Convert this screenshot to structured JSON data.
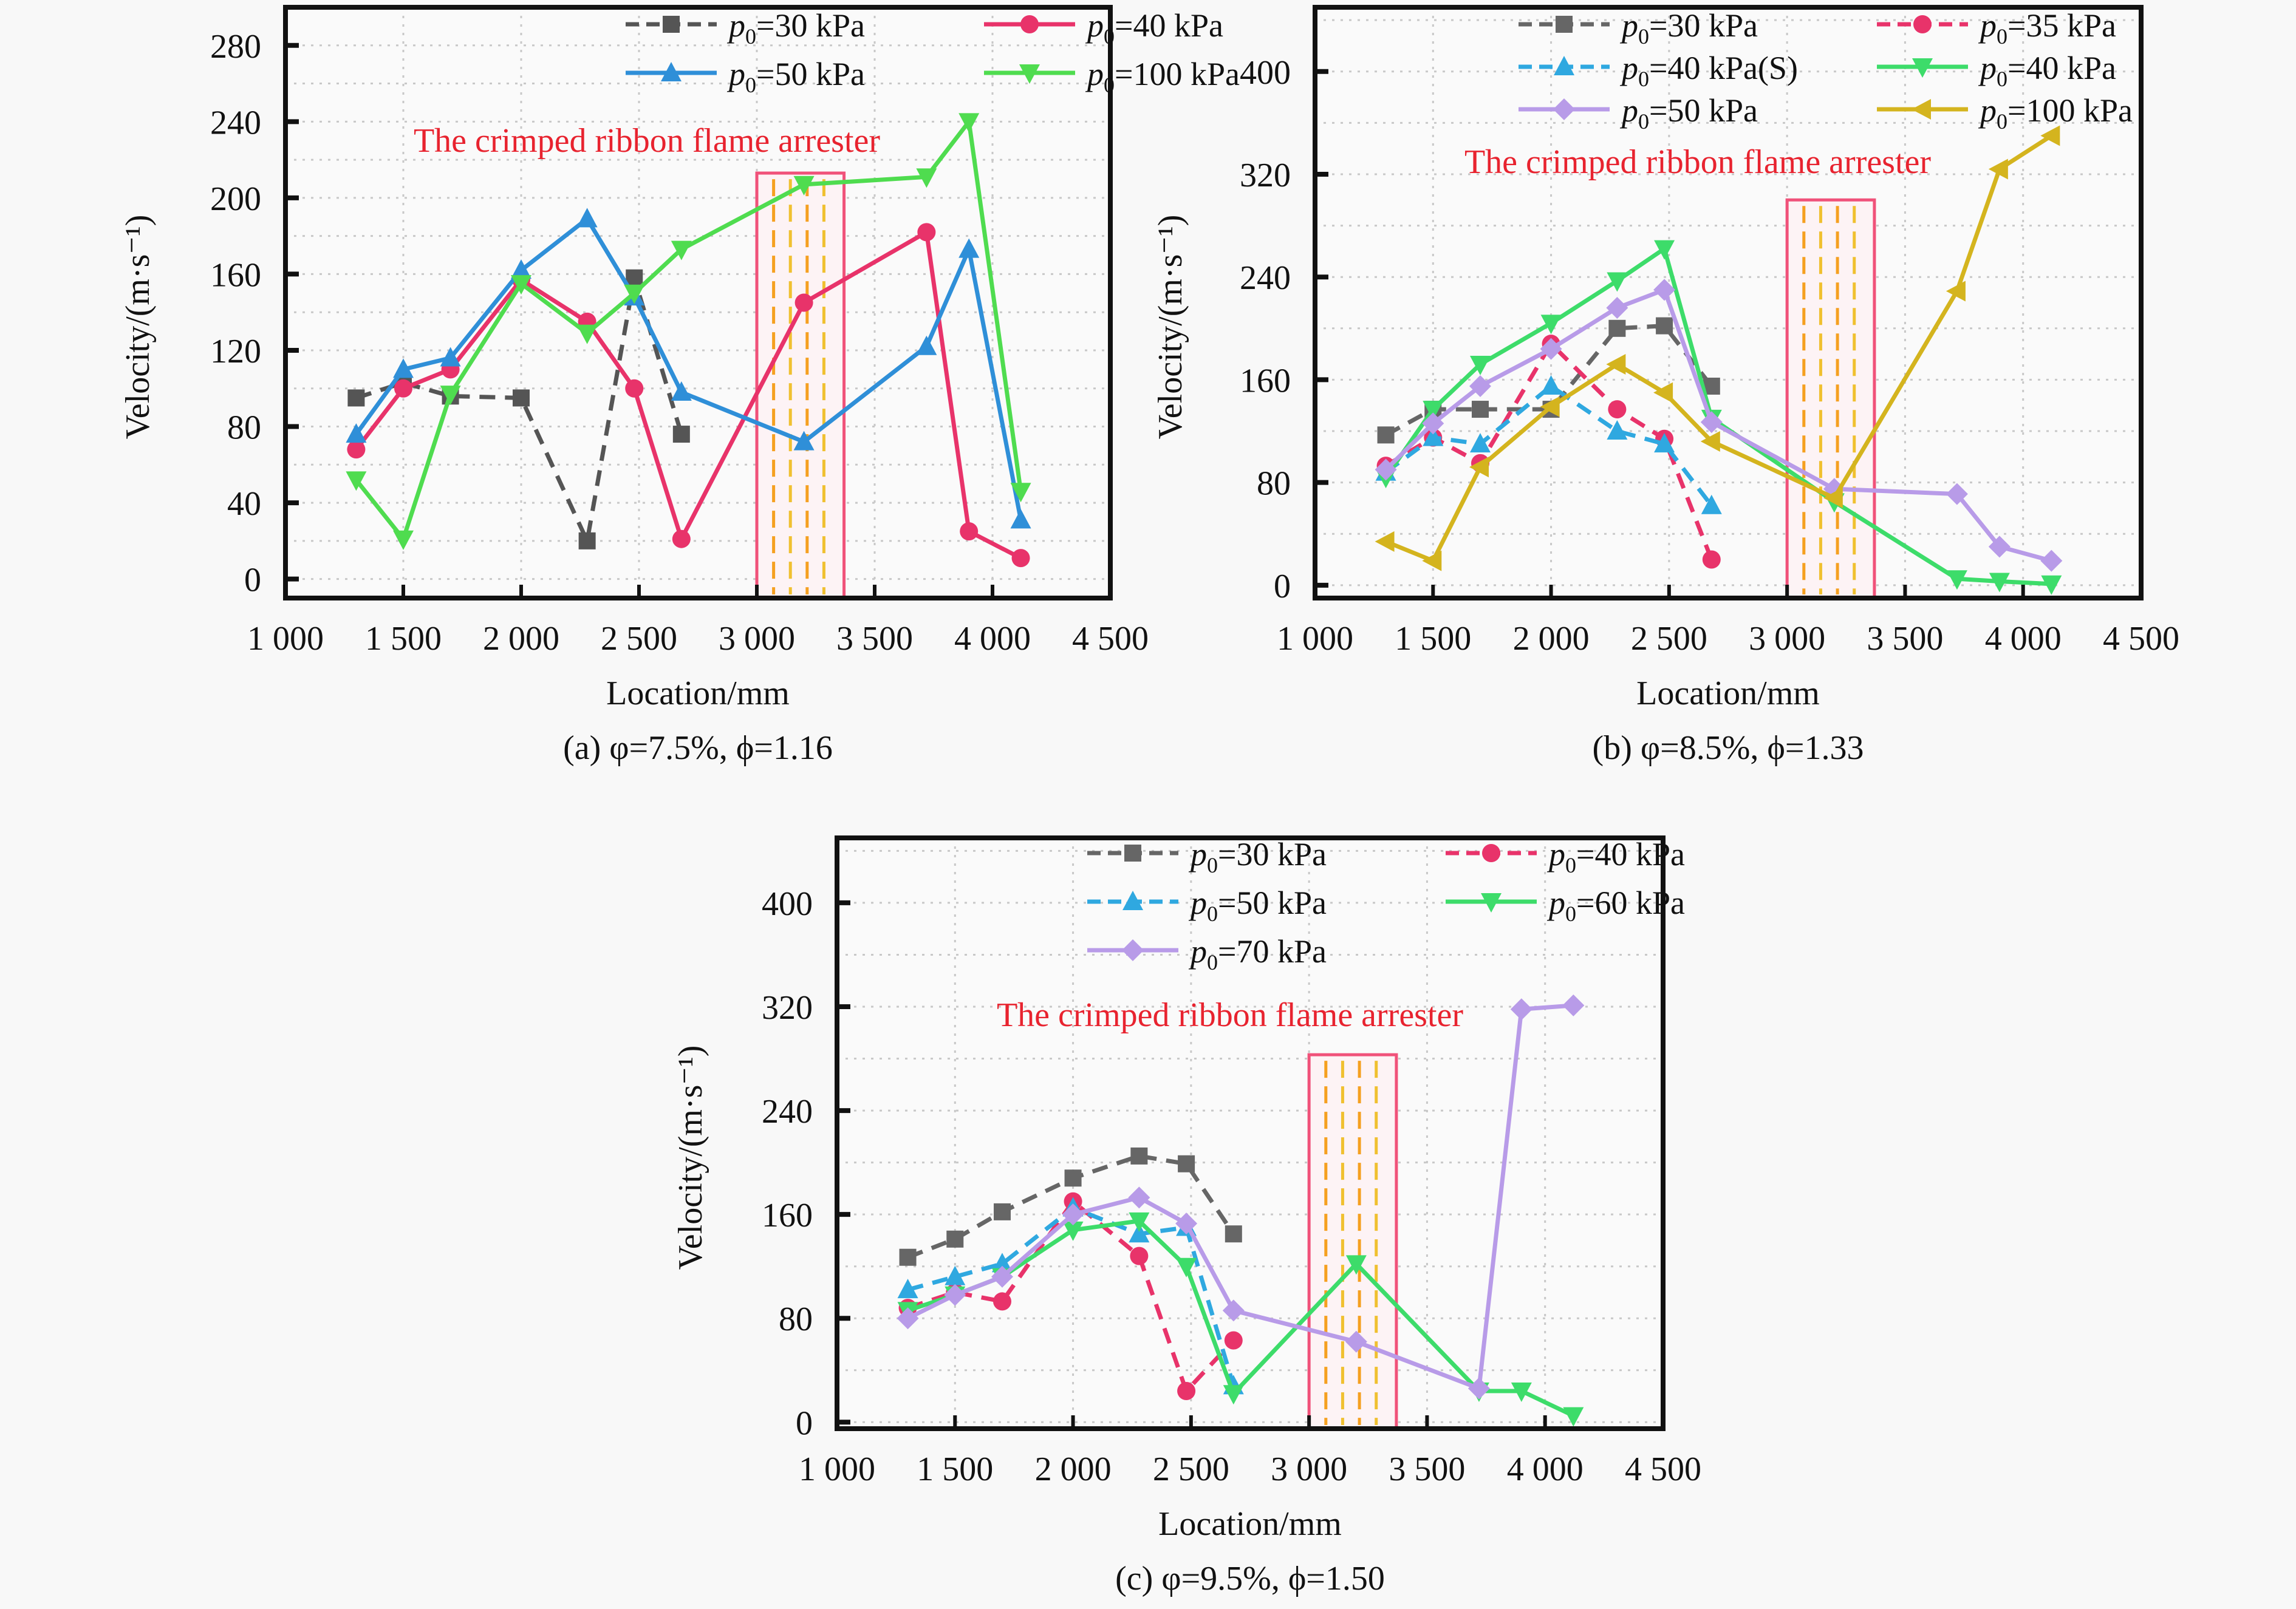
{
  "chart_data": [
    {
      "id": "a",
      "type": "line",
      "caption": "(a) φ=7.5%, ϕ=1.16",
      "xlabel": "Location/mm",
      "ylabel": "Velocity/(m·s⁻¹)",
      "xlim": [
        1000,
        4500
      ],
      "ylim": [
        -10,
        300
      ],
      "xticks": [
        1000,
        1500,
        2000,
        2500,
        3000,
        3500,
        4000,
        4500
      ],
      "xtick_labels": [
        "1 000",
        "1 500",
        "2 000",
        "2 500",
        "3 000",
        "3 500",
        "4 000",
        "4 500"
      ],
      "yticks": [
        0,
        40,
        80,
        120,
        160,
        200,
        240,
        280
      ],
      "grid": true,
      "legend": "top-right",
      "legend_cols": 2,
      "annotation": "The crimped ribbon flame arrester",
      "arrester_region": [
        3000,
        3370
      ],
      "series": [
        {
          "name": "p0=30 kPa",
          "label_sub": "30 kPa",
          "color": "#555555",
          "dash": true,
          "marker": "square",
          "x": [
            1300,
            1500,
            1700,
            2000,
            2280,
            2480,
            2680
          ],
          "y": [
            95,
            103,
            96,
            95,
            20,
            158,
            76
          ]
        },
        {
          "name": "p0=40 kPa",
          "label_sub": "40 kPa",
          "color": "#e8336a",
          "dash": false,
          "marker": "circle",
          "x": [
            1300,
            1500,
            1700,
            2000,
            2280,
            2480,
            2680,
            3200,
            3720,
            3900,
            4120
          ],
          "y": [
            68,
            100,
            110,
            157,
            135,
            100,
            21,
            145,
            182,
            25,
            11
          ]
        },
        {
          "name": "p0=50 kPa",
          "label_sub": "50 kPa",
          "color": "#2f8fd8",
          "dash": false,
          "marker": "triangle-up",
          "x": [
            1300,
            1500,
            1700,
            2000,
            2280,
            2480,
            2680,
            3200,
            3720,
            3900,
            4120
          ],
          "y": [
            76,
            110,
            116,
            162,
            189,
            148,
            98,
            72,
            122,
            173,
            31
          ]
        },
        {
          "name": "p0=100 kPa",
          "label_sub": "100 kPa",
          "color": "#4fdc4f",
          "dash": false,
          "marker": "triangle-down",
          "x": [
            1300,
            1500,
            1700,
            2000,
            2280,
            2480,
            2680,
            3200,
            3720,
            3900,
            4120
          ],
          "y": [
            52,
            21,
            97,
            155,
            129,
            150,
            173,
            207,
            211,
            240,
            46
          ]
        }
      ]
    },
    {
      "id": "b",
      "type": "line",
      "caption": "(b) φ=8.5%, ϕ=1.33",
      "xlabel": "Location/mm",
      "ylabel": "Velocity/(m·s⁻¹)",
      "xlim": [
        1000,
        4500
      ],
      "ylim": [
        -10,
        450
      ],
      "xticks": [
        1000,
        1500,
        2000,
        2500,
        3000,
        3500,
        4000,
        4500
      ],
      "xtick_labels": [
        "1 000",
        "1 500",
        "2 000",
        "2 500",
        "3 000",
        "3 500",
        "4 000",
        "4 500"
      ],
      "yticks": [
        0,
        80,
        160,
        240,
        320,
        400
      ],
      "grid": true,
      "legend": "top-right",
      "legend_cols": 2,
      "annotation": "The crimped ribbon flame arrester",
      "arrester_region": [
        3000,
        3370
      ],
      "series": [
        {
          "name": "p0=30 kPa",
          "label_sub": "30 kPa",
          "color": "#666666",
          "dash": true,
          "marker": "square",
          "x": [
            1300,
            1500,
            1700,
            2000,
            2280,
            2480,
            2680
          ],
          "y": [
            117,
            137,
            137,
            137,
            200,
            202,
            155
          ]
        },
        {
          "name": "p0=35 kPa",
          "label_sub": "35 kPa",
          "color": "#e8336a",
          "dash": true,
          "marker": "circle",
          "x": [
            1300,
            1500,
            1700,
            2000,
            2280,
            2480,
            2680
          ],
          "y": [
            93,
            115,
            95,
            188,
            137,
            114,
            20
          ]
        },
        {
          "name": "p0=40 kPa(S)",
          "label_sub": "40 kPa(S)",
          "color": "#2fa8e0",
          "dash": true,
          "marker": "triangle-up",
          "x": [
            1300,
            1500,
            1700,
            2000,
            2280,
            2480,
            2680
          ],
          "y": [
            88,
            115,
            110,
            155,
            120,
            110,
            62
          ]
        },
        {
          "name": "p0=40 kPa",
          "label_sub": "40 kPa",
          "color": "#3ddc6a",
          "dash": false,
          "marker": "triangle-down",
          "x": [
            1300,
            1500,
            1700,
            2000,
            2280,
            2480,
            2680,
            3200,
            3720,
            3900,
            4120
          ],
          "y": [
            84,
            137,
            172,
            204,
            237,
            262,
            130,
            65,
            5,
            3,
            1
          ]
        },
        {
          "name": "p0=50 kPa",
          "label_sub": "50 kPa",
          "color": "#b89be8",
          "dash": false,
          "marker": "diamond",
          "x": [
            1300,
            1500,
            1700,
            2000,
            2280,
            2480,
            2680,
            3200,
            3720,
            3900,
            4120
          ],
          "y": [
            90,
            126,
            155,
            184,
            216,
            230,
            127,
            75,
            71,
            30,
            19
          ]
        },
        {
          "name": "p0=100 kPa",
          "label_sub": "100 kPa",
          "color": "#d4b41e",
          "dash": false,
          "marker": "triangle-left",
          "x": [
            1300,
            1500,
            1700,
            2000,
            2280,
            2480,
            2680,
            3200,
            3720,
            3900,
            4120
          ],
          "y": [
            34,
            19,
            92,
            139,
            172,
            150,
            112,
            68,
            229,
            324,
            350
          ]
        }
      ]
    },
    {
      "id": "c",
      "type": "line",
      "caption": "(c) φ=9.5%, ϕ=1.50",
      "xlabel": "Location/mm",
      "ylabel": "Velocity/(m·s⁻¹)",
      "xlim": [
        1000,
        4500
      ],
      "ylim": [
        -5,
        450
      ],
      "xticks": [
        1000,
        1500,
        2000,
        2500,
        3000,
        3500,
        4000,
        4500
      ],
      "xtick_labels": [
        "1 000",
        "1 500",
        "2 000",
        "2 500",
        "3 000",
        "3 500",
        "4 000",
        "4 500"
      ],
      "yticks": [
        0,
        80,
        160,
        240,
        320,
        400
      ],
      "grid": true,
      "legend": "top-right",
      "legend_cols": 2,
      "annotation": "The crimped ribbon flame arrester",
      "arrester_region": [
        3000,
        3370
      ],
      "series": [
        {
          "name": "p0=30 kPa",
          "label_sub": "30 kPa",
          "color": "#666666",
          "dash": true,
          "marker": "square",
          "x": [
            1300,
            1500,
            1700,
            2000,
            2280,
            2480,
            2680
          ],
          "y": [
            127,
            141,
            162,
            188,
            205,
            199,
            145
          ]
        },
        {
          "name": "p0=40 kPa",
          "label_sub": "40 kPa",
          "color": "#e8336a",
          "dash": true,
          "marker": "circle",
          "x": [
            1300,
            1500,
            1700,
            2000,
            2280,
            2480,
            2680
          ],
          "y": [
            88,
            100,
            93,
            170,
            128,
            24,
            63
          ]
        },
        {
          "name": "p0=50 kPa",
          "label_sub": "50 kPa",
          "color": "#2fa8e0",
          "dash": true,
          "marker": "triangle-up",
          "x": [
            1300,
            1500,
            1700,
            2000,
            2280,
            2480,
            2680
          ],
          "y": [
            102,
            112,
            122,
            165,
            145,
            150,
            28
          ]
        },
        {
          "name": "p0=60 kPa",
          "label_sub": "60 kPa",
          "color": "#3ddc6a",
          "dash": false,
          "marker": "triangle-down",
          "x": [
            1300,
            1500,
            1700,
            2000,
            2280,
            2480,
            2680,
            3200,
            3720,
            3900,
            4120
          ],
          "y": [
            86,
            98,
            112,
            148,
            155,
            120,
            22,
            122,
            24,
            24,
            5
          ]
        },
        {
          "name": "p0=70 kPa",
          "label_sub": "70 kPa",
          "color": "#b89be8",
          "dash": false,
          "marker": "diamond",
          "x": [
            1300,
            1500,
            1700,
            2000,
            2280,
            2480,
            2680,
            3200,
            3720,
            3900,
            4120
          ],
          "y": [
            80,
            98,
            112,
            160,
            173,
            153,
            86,
            62,
            26,
            318,
            321
          ]
        }
      ]
    }
  ]
}
